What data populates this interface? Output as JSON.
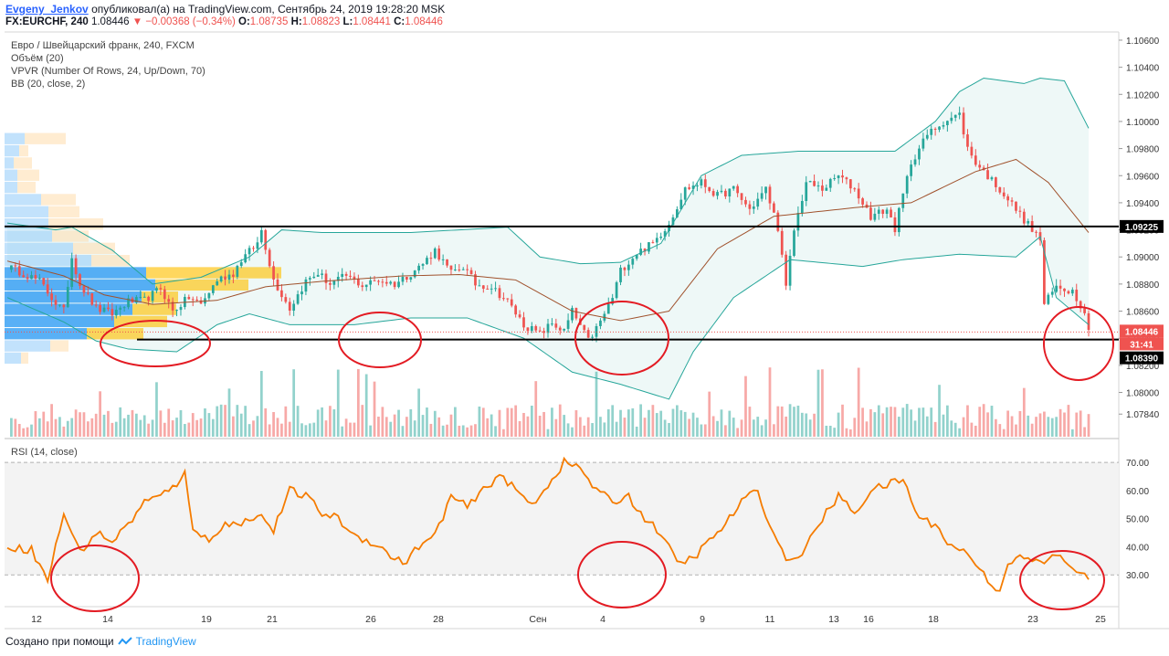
{
  "header": {
    "user": "Evgeny_Jenkov",
    "published_text": "опубликовал(а) на TradingView.com, Сентябрь 24, 2019 19:28:20 MSK",
    "symbol": "FX:EURCHF, 240",
    "last": "1.08446",
    "change": "−0.00368 (−0.34%)",
    "o_label": "O:",
    "o_value": "1.08735",
    "h_label": "H:",
    "h_value": "1.08823",
    "l_label": "L:",
    "l_value": "1.08441",
    "c_label": "C:",
    "c_value": "1.08446"
  },
  "legend": {
    "pair": "Евро / Швейцарский франк, 240, FXCM",
    "volume": "Объём (20)",
    "vpvr": "VPVR (Number Of Rows, 24, Up/Down, 70)",
    "bb": "BB (20, close, 2)",
    "rsi": "RSI (14, close)"
  },
  "price_badges": {
    "resistance": "1.09225",
    "last": "1.08446",
    "countdown": "31:41",
    "support": "1.08390"
  },
  "footer": {
    "created": "Создано при помощи",
    "brand": "TradingView"
  },
  "colors": {
    "up": "#26a69a",
    "down": "#ef5350",
    "bb_line": "#26a69a",
    "bb_basis": "#a0522d",
    "rsi_line": "#f57c00",
    "circle": "#e31b23"
  },
  "chart_data": [
    {
      "type": "candlestick",
      "title": "Евро / Швейцарский франк, 240, FXCM",
      "y_axis_ticks": [
        "1.10600",
        "1.10400",
        "1.10200",
        "1.10000",
        "1.09800",
        "1.09600",
        "1.09400",
        "1.09200",
        "1.09000",
        "1.08800",
        "1.08600",
        "1.08400",
        "1.08200",
        "1.08000",
        "1.07840"
      ],
      "ylim": [
        1.077,
        1.1062
      ],
      "x_axis_ticks": [
        "12",
        "14",
        "19",
        "21",
        "26",
        "28",
        "Сен",
        "4",
        "9",
        "11",
        "13",
        "16",
        "18",
        "23",
        "25"
      ],
      "horizontal_levels": [
        1.09225,
        1.0839
      ],
      "last_price": 1.08446,
      "close_path": [
        [
          0,
          1.0893
        ],
        [
          4,
          1.0888
        ],
        [
          8,
          1.0882
        ],
        [
          12,
          1.0866
        ],
        [
          14,
          1.086
        ],
        [
          16,
          1.09
        ],
        [
          18,
          1.088
        ],
        [
          22,
          1.0862
        ],
        [
          26,
          1.0858
        ],
        [
          30,
          1.0867
        ],
        [
          34,
          1.0868
        ],
        [
          38,
          1.0877
        ],
        [
          41,
          1.086
        ],
        [
          45,
          1.087
        ],
        [
          48,
          1.0865
        ],
        [
          52,
          1.0883
        ],
        [
          56,
          1.0888
        ],
        [
          58,
          1.0898
        ],
        [
          62,
          1.091
        ],
        [
          63,
          1.092
        ],
        [
          66,
          1.0883
        ],
        [
          70,
          1.0862
        ],
        [
          74,
          1.0882
        ],
        [
          77,
          1.0888
        ],
        [
          80,
          1.088
        ],
        [
          84,
          1.0886
        ],
        [
          88,
          1.0879
        ],
        [
          92,
          1.0883
        ],
        [
          96,
          1.088
        ],
        [
          100,
          1.0888
        ],
        [
          103,
          1.0895
        ],
        [
          106,
          1.0905
        ],
        [
          110,
          1.0888
        ],
        [
          113,
          1.0893
        ],
        [
          116,
          1.088
        ],
        [
          120,
          1.0878
        ],
        [
          124,
          1.0867
        ],
        [
          128,
          1.085
        ],
        [
          132,
          1.0843
        ],
        [
          135,
          1.0851
        ],
        [
          138,
          1.0845
        ],
        [
          140,
          1.086
        ],
        [
          144,
          1.0838
        ],
        [
          147,
          1.0852
        ],
        [
          150,
          1.087
        ],
        [
          152,
          1.089
        ],
        [
          156,
          1.0903
        ],
        [
          160,
          1.091
        ],
        [
          164,
          1.0925
        ],
        [
          168,
          1.095
        ],
        [
          172,
          1.0955
        ],
        [
          176,
          1.0945
        ],
        [
          180,
          1.095
        ],
        [
          184,
          1.0935
        ],
        [
          188,
          1.095
        ],
        [
          191,
          1.0922
        ],
        [
          193,
          1.0877
        ],
        [
          195,
          1.092
        ],
        [
          198,
          1.0955
        ],
        [
          202,
          1.095
        ],
        [
          206,
          1.096
        ],
        [
          210,
          1.095
        ],
        [
          214,
          1.093
        ],
        [
          218,
          1.0935
        ],
        [
          220,
          1.0921
        ],
        [
          224,
          1.097
        ],
        [
          228,
          1.099
        ],
        [
          232,
          1.1
        ],
        [
          236,
          1.1005
        ],
        [
          238,
          1.098
        ],
        [
          240,
          1.097
        ],
        [
          242,
          1.0963
        ],
        [
          246,
          1.095
        ],
        [
          250,
          1.0935
        ],
        [
          254,
          1.092
        ],
        [
          256,
          1.0913
        ],
        [
          257,
          1.0865
        ],
        [
          260,
          1.0878
        ],
        [
          264,
          1.0875
        ],
        [
          267,
          1.086
        ],
        [
          268,
          1.0845
        ]
      ],
      "bollinger_upper": [
        [
          0,
          1.0925
        ],
        [
          12,
          1.092
        ],
        [
          16,
          1.0922
        ],
        [
          26,
          1.0905
        ],
        [
          36,
          1.088
        ],
        [
          48,
          1.0885
        ],
        [
          60,
          1.09
        ],
        [
          68,
          1.092
        ],
        [
          78,
          1.0918
        ],
        [
          100,
          1.0918
        ],
        [
          112,
          1.092
        ],
        [
          124,
          1.0922
        ],
        [
          132,
          1.09
        ],
        [
          142,
          1.0895
        ],
        [
          152,
          1.0896
        ],
        [
          162,
          1.091
        ],
        [
          172,
          1.096
        ],
        [
          182,
          1.0975
        ],
        [
          196,
          1.0978
        ],
        [
          212,
          1.0978
        ],
        [
          220,
          1.0978
        ],
        [
          230,
          1.1
        ],
        [
          236,
          1.1022
        ],
        [
          242,
          1.1032
        ],
        [
          252,
          1.1028
        ],
        [
          256,
          1.1032
        ],
        [
          262,
          1.103
        ],
        [
          268,
          1.0995
        ]
      ],
      "bollinger_lower": [
        [
          0,
          1.087
        ],
        [
          14,
          1.0852
        ],
        [
          22,
          1.0838
        ],
        [
          30,
          1.0832
        ],
        [
          42,
          1.083
        ],
        [
          52,
          1.085
        ],
        [
          60,
          1.0858
        ],
        [
          70,
          1.085
        ],
        [
          86,
          1.085
        ],
        [
          100,
          1.0855
        ],
        [
          114,
          1.0855
        ],
        [
          128,
          1.084
        ],
        [
          140,
          1.0815
        ],
        [
          152,
          1.0806
        ],
        [
          164,
          1.0795
        ],
        [
          170,
          1.083
        ],
        [
          180,
          1.087
        ],
        [
          194,
          1.0898
        ],
        [
          212,
          1.0893
        ],
        [
          222,
          1.0898
        ],
        [
          236,
          1.0902
        ],
        [
          250,
          1.09
        ],
        [
          256,
          1.0915
        ],
        [
          260,
          1.087
        ],
        [
          264,
          1.086
        ],
        [
          268,
          1.085
        ]
      ],
      "bollinger_basis": [
        [
          0,
          1.0897
        ],
        [
          14,
          1.0886
        ],
        [
          24,
          1.0872
        ],
        [
          36,
          1.0865
        ],
        [
          52,
          1.0868
        ],
        [
          64,
          1.0878
        ],
        [
          78,
          1.0882
        ],
        [
          98,
          1.0886
        ],
        [
          112,
          1.0887
        ],
        [
          126,
          1.0883
        ],
        [
          140,
          1.086
        ],
        [
          152,
          1.0853
        ],
        [
          164,
          1.086
        ],
        [
          176,
          1.0906
        ],
        [
          190,
          1.093
        ],
        [
          212,
          1.0937
        ],
        [
          224,
          1.094
        ],
        [
          240,
          1.0963
        ],
        [
          250,
          1.0972
        ],
        [
          258,
          1.0955
        ],
        [
          268,
          1.0918
        ]
      ],
      "vpvr_rows": {
        "price_levels": [
          1.0987,
          1.0978,
          1.0969,
          1.096,
          1.0951,
          1.0942,
          1.0933,
          1.0924,
          1.0915,
          1.0906,
          1.0897,
          1.0888,
          1.0879,
          1.087,
          1.0861,
          1.0852,
          1.0843,
          1.0834,
          1.0825
        ],
        "up": [
          22,
          16,
          10,
          14,
          14,
          40,
          48,
          48,
          52,
          75,
          95,
          155,
          165,
          150,
          140,
          120,
          90,
          50,
          18
        ],
        "down": [
          45,
          10,
          20,
          24,
          20,
          38,
          34,
          60,
          40,
          46,
          42,
          148,
          102,
          40,
          48,
          58,
          62,
          20,
          8
        ]
      }
    },
    {
      "type": "line",
      "title": "RSI (14, close)",
      "y_axis_ticks": [
        "70.00",
        "60.00",
        "50.00",
        "40.00",
        "30.00"
      ],
      "ylim": [
        20,
        72
      ],
      "levels": [
        70,
        30
      ],
      "values": [
        [
          0,
          40
        ],
        [
          6,
          39
        ],
        [
          10,
          28
        ],
        [
          14,
          52
        ],
        [
          18,
          38
        ],
        [
          22,
          45
        ],
        [
          26,
          42
        ],
        [
          30,
          48
        ],
        [
          34,
          56
        ],
        [
          38,
          58
        ],
        [
          42,
          62
        ],
        [
          44,
          68
        ],
        [
          46,
          45
        ],
        [
          50,
          43
        ],
        [
          54,
          48
        ],
        [
          58,
          48
        ],
        [
          62,
          52
        ],
        [
          66,
          46
        ],
        [
          70,
          60
        ],
        [
          74,
          58
        ],
        [
          78,
          52
        ],
        [
          82,
          50
        ],
        [
          86,
          44
        ],
        [
          90,
          42
        ],
        [
          94,
          38
        ],
        [
          98,
          34
        ],
        [
          102,
          40
        ],
        [
          106,
          44
        ],
        [
          110,
          58
        ],
        [
          114,
          54
        ],
        [
          118,
          60
        ],
        [
          122,
          66
        ],
        [
          126,
          60
        ],
        [
          130,
          55
        ],
        [
          134,
          62
        ],
        [
          138,
          70
        ],
        [
          142,
          68
        ],
        [
          146,
          60
        ],
        [
          150,
          56
        ],
        [
          154,
          58
        ],
        [
          158,
          50
        ],
        [
          162,
          45
        ],
        [
          166,
          34
        ],
        [
          170,
          36
        ],
        [
          174,
          42
        ],
        [
          178,
          48
        ],
        [
          182,
          56
        ],
        [
          186,
          60
        ],
        [
          190,
          44
        ],
        [
          194,
          34
        ],
        [
          198,
          40
        ],
        [
          202,
          50
        ],
        [
          206,
          58
        ],
        [
          210,
          52
        ],
        [
          214,
          60
        ],
        [
          218,
          62
        ],
        [
          222,
          64
        ],
        [
          226,
          50
        ],
        [
          230,
          48
        ],
        [
          234,
          40
        ],
        [
          238,
          38
        ],
        [
          242,
          30
        ],
        [
          246,
          24
        ],
        [
          248,
          35
        ],
        [
          252,
          36
        ],
        [
          256,
          34
        ],
        [
          260,
          37
        ],
        [
          264,
          33
        ],
        [
          268,
          28
        ]
      ],
      "x_axis_ticks": [
        "12",
        "14",
        "19",
        "21",
        "26",
        "28",
        "Сен",
        "4",
        "9",
        "11",
        "13",
        "16",
        "18",
        "23",
        "25"
      ]
    }
  ]
}
